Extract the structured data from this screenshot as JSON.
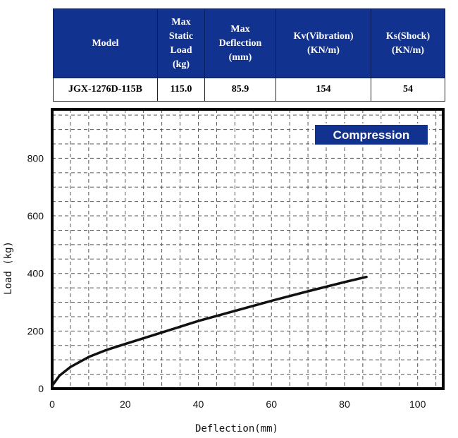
{
  "table": {
    "headers": [
      "Model",
      "Max\nStatic\nLoad\n(kg)",
      "Max\nDeflection\n(mm)",
      "Kv(Vibration)\n(KN/m)",
      "Ks(Shock)\n(KN/m)"
    ],
    "row": [
      "JGX-1276D-115B",
      "115.0",
      "85.9",
      "154",
      "54"
    ]
  },
  "chart_data": {
    "type": "line",
    "xlabel": "Deflection(mm)",
    "ylabel": "Load (kg)",
    "legend": "Compression",
    "legend_position": "top-right",
    "grid": true,
    "xlim": [
      0,
      107
    ],
    "ylim": [
      0,
      970
    ],
    "xticks": [
      0,
      20,
      40,
      60,
      80,
      100
    ],
    "yticks": [
      0,
      200,
      400,
      600,
      800
    ],
    "series": [
      {
        "name": "Compression",
        "x": [
          0,
          2,
          5,
          10,
          15,
          20,
          30,
          40,
          50,
          60,
          70,
          80,
          86
        ],
        "y": [
          10,
          45,
          75,
          110,
          135,
          155,
          195,
          235,
          270,
          305,
          338,
          370,
          388
        ]
      }
    ],
    "colors": {
      "line": "#111111",
      "frame": "#000000",
      "grid": "#555555",
      "badge": "#12328f"
    }
  }
}
